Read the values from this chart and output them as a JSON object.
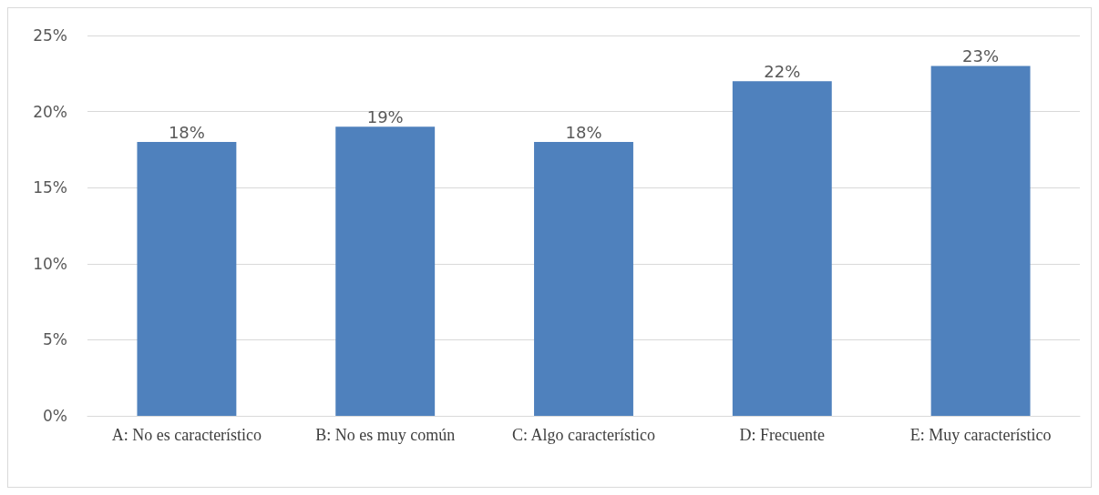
{
  "chart_data": {
    "type": "bar",
    "categories": [
      "A: No es característico",
      "B: No es muy común",
      "C: Algo característico",
      "D: Frecuente",
      "E: Muy característico"
    ],
    "values": [
      18,
      19,
      18,
      22,
      23
    ],
    "value_labels": [
      "18%",
      "19%",
      "18%",
      "22%",
      "23%"
    ],
    "color": "#4f81bd",
    "ylim": [
      0,
      25
    ],
    "yticks": [
      {
        "value": 0,
        "label": "0%"
      },
      {
        "value": 5,
        "label": "5%"
      },
      {
        "value": 10,
        "label": "10%"
      },
      {
        "value": 15,
        "label": "15%"
      },
      {
        "value": 20,
        "label": "20%"
      },
      {
        "value": 25,
        "label": "25%"
      }
    ],
    "grid": "y"
  }
}
